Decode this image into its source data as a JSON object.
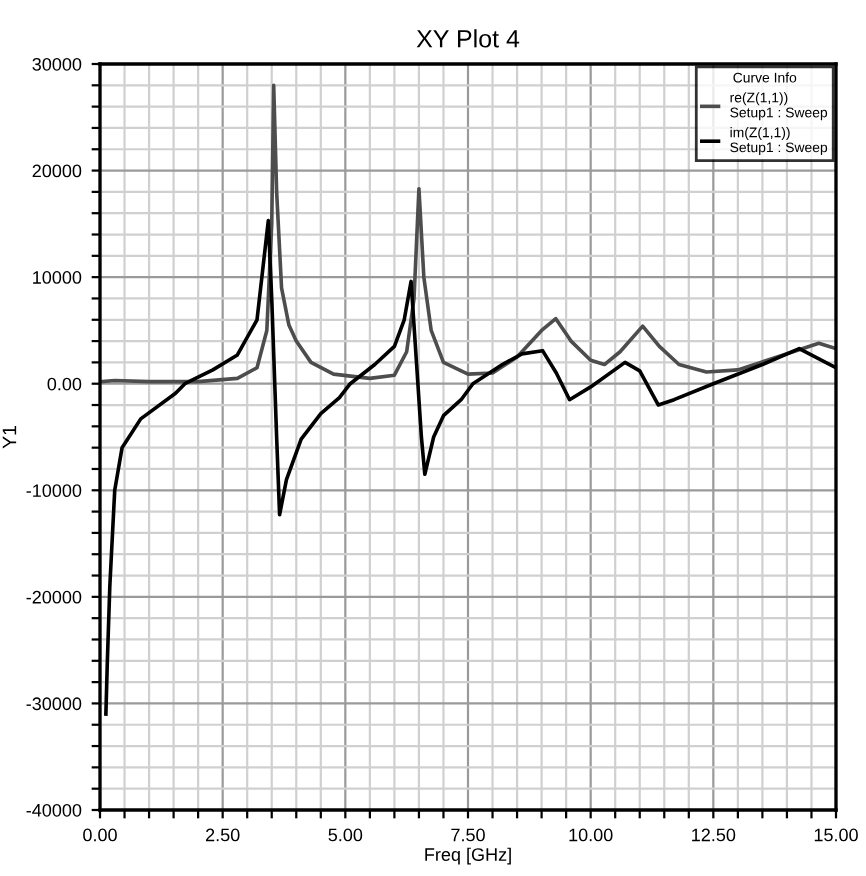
{
  "chart_data": {
    "type": "line",
    "title": "XY Plot 4",
    "xlabel": "Freq [GHz]",
    "ylabel": "Y1",
    "legend_title": "Curve Info",
    "series": [
      {
        "name": "re(Z(1,1))\nSetup1 : Sweep",
        "color": "#4d4d4d",
        "x": [
          0.05,
          0.3,
          1.0,
          2.0,
          2.8,
          3.2,
          3.4,
          3.5,
          3.54,
          3.6,
          3.7,
          3.85,
          4.0,
          4.3,
          4.76,
          5.5,
          6.0,
          6.25,
          6.4,
          6.5,
          6.6,
          6.75,
          7.0,
          7.5,
          8.0,
          8.5,
          9.0,
          9.29,
          9.6,
          10.0,
          10.28,
          10.6,
          11.06,
          11.4,
          11.8,
          12.36,
          13.0,
          13.8,
          14.65,
          15.0
        ],
        "values": [
          200,
          300,
          200,
          200,
          500,
          1500,
          5000,
          15000,
          28000,
          18000,
          9000,
          5500,
          4000,
          2000,
          900,
          500,
          800,
          3000,
          8000,
          18300,
          10000,
          5000,
          2000,
          900,
          1000,
          2500,
          5000,
          6100,
          4000,
          2200,
          1800,
          3000,
          5400,
          3500,
          1800,
          1100,
          1300,
          2500,
          3800,
          3300
        ]
      },
      {
        "name": "im(Z(1,1))\nSetup1 : Sweep",
        "color": "#000000",
        "x": [
          0.12,
          0.15,
          0.2,
          0.3,
          0.45,
          0.83,
          1.54,
          1.73,
          2.3,
          2.8,
          3.2,
          3.43,
          3.5,
          3.6,
          3.66,
          3.8,
          4.1,
          4.5,
          4.88,
          5.1,
          5.6,
          6.0,
          6.2,
          6.34,
          6.45,
          6.55,
          6.62,
          6.8,
          7.0,
          7.36,
          7.6,
          8.2,
          8.6,
          9.02,
          9.3,
          9.57,
          10.0,
          10.7,
          11.0,
          11.38,
          11.7,
          12.5,
          13.5,
          14.25,
          15.0
        ],
        "values": [
          -31000,
          -26000,
          -19000,
          -10000,
          -6000,
          -3300,
          -900,
          0,
          1300,
          2700,
          6000,
          15300,
          8000,
          -5000,
          -12300,
          -9000,
          -5200,
          -2800,
          -1300,
          0,
          1800,
          3500,
          6000,
          9600,
          2000,
          -5000,
          -8500,
          -5000,
          -3000,
          -1500,
          0,
          1800,
          2800,
          3100,
          1000,
          -1500,
          -300,
          2000,
          1200,
          -2000,
          -1500,
          0,
          1800,
          3300,
          1500
        ]
      }
    ],
    "xlim": [
      0,
      15
    ],
    "ylim": [
      -40000,
      30000
    ],
    "xticks": [
      {
        "value": 0,
        "label": "0.00"
      },
      {
        "value": 0.5,
        "label": null
      },
      {
        "value": 1,
        "label": null
      },
      {
        "value": 1.5,
        "label": null
      },
      {
        "value": 2,
        "label": null
      },
      {
        "value": 2.5,
        "label": "2.50"
      },
      {
        "value": 3,
        "label": null
      },
      {
        "value": 3.5,
        "label": null
      },
      {
        "value": 4,
        "label": null
      },
      {
        "value": 4.5,
        "label": null
      },
      {
        "value": 5,
        "label": "5.00"
      },
      {
        "value": 5.5,
        "label": null
      },
      {
        "value": 6,
        "label": null
      },
      {
        "value": 6.5,
        "label": null
      },
      {
        "value": 7,
        "label": null
      },
      {
        "value": 7.5,
        "label": "7.50"
      },
      {
        "value": 8,
        "label": null
      },
      {
        "value": 8.5,
        "label": null
      },
      {
        "value": 9,
        "label": null
      },
      {
        "value": 9.5,
        "label": null
      },
      {
        "value": 10,
        "label": "10.00"
      },
      {
        "value": 10.5,
        "label": null
      },
      {
        "value": 11,
        "label": null
      },
      {
        "value": 11.5,
        "label": null
      },
      {
        "value": 12,
        "label": null
      },
      {
        "value": 12.5,
        "label": "12.50"
      },
      {
        "value": 13,
        "label": null
      },
      {
        "value": 13.5,
        "label": null
      },
      {
        "value": 14,
        "label": null
      },
      {
        "value": 14.5,
        "label": null
      },
      {
        "value": 15,
        "label": "15.00"
      }
    ],
    "yticks": [
      -40000,
      {
        "value": -38000,
        "label": null
      },
      {
        "value": -36000,
        "label": null
      },
      {
        "value": -34000,
        "label": null
      },
      {
        "value": -32000,
        "label": null
      },
      -30000,
      {
        "value": -28000,
        "label": null
      },
      {
        "value": -26000,
        "label": null
      },
      {
        "value": -24000,
        "label": null
      },
      {
        "value": -22000,
        "label": null
      },
      -20000,
      {
        "value": -18000,
        "label": null
      },
      {
        "value": -16000,
        "label": null
      },
      {
        "value": -14000,
        "label": null
      },
      {
        "value": -12000,
        "label": null
      },
      -10000,
      {
        "value": -8000,
        "label": null
      },
      {
        "value": -6000,
        "label": null
      },
      {
        "value": -4000,
        "label": null
      },
      {
        "value": -2000,
        "label": null
      },
      {
        "value": 0,
        "label": "0.00"
      },
      {
        "value": 2000,
        "label": null
      },
      {
        "value": 4000,
        "label": null
      },
      {
        "value": 6000,
        "label": null
      },
      {
        "value": 8000,
        "label": null
      },
      10000,
      {
        "value": 12000,
        "label": null
      },
      {
        "value": 14000,
        "label": null
      },
      {
        "value": 16000,
        "label": null
      },
      {
        "value": 18000,
        "label": null
      },
      20000,
      {
        "value": 22000,
        "label": null
      },
      {
        "value": 24000,
        "label": null
      },
      {
        "value": 26000,
        "label": null
      },
      {
        "value": 28000,
        "label": null
      },
      30000
    ],
    "grid": true,
    "legend": "top right",
    "line_style": "solid",
    "marker": "none"
  }
}
